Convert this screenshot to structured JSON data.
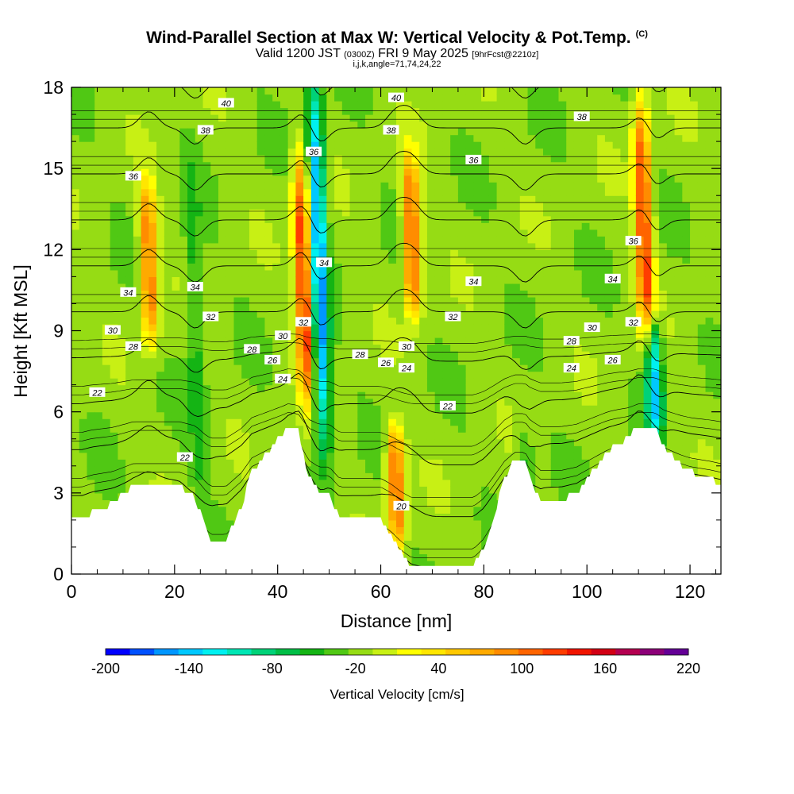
{
  "title": {
    "main": "Wind-Parallel Section at Max W: Vertical Velocity & Pot.Temp.",
    "copyright": "(C)",
    "valid_prefix": "Valid 1200 JST",
    "valid_utc": "(0300Z)",
    "valid_date": "FRI 9 May 2025",
    "forecast_tag": "[9hrFcst@2210z]",
    "indices": "i,j,k,angle=71,74,24,22"
  },
  "chart_data": {
    "type": "heatmap",
    "xlabel": "Distance [nm]",
    "ylabel": "Height [Kft MSL]",
    "xlim": [
      0,
      126
    ],
    "ylim": [
      0,
      18
    ],
    "x_ticks": [
      0,
      20,
      40,
      60,
      80,
      100,
      120
    ],
    "y_ticks": [
      0,
      3,
      6,
      9,
      12,
      15,
      18
    ],
    "colorbar": {
      "label": "Vertical Velocity [cm/s]",
      "min": -200,
      "max": 220,
      "step": 20,
      "tick_labels": [
        -200,
        -140,
        -80,
        -20,
        40,
        100,
        160,
        220
      ],
      "colors": [
        "#0000ff",
        "#0050ff",
        "#0096ff",
        "#00c8ff",
        "#00f0f0",
        "#00e6b4",
        "#00d278",
        "#00be46",
        "#14b414",
        "#50c814",
        "#96dc14",
        "#c8f014",
        "#ffff00",
        "#ffe600",
        "#ffc800",
        "#ffaa00",
        "#ff8c00",
        "#ff6400",
        "#ff3c00",
        "#f01400",
        "#d20014",
        "#b40050",
        "#8c0078",
        "#640096"
      ]
    },
    "terrain_profile_kft": [
      [
        0,
        2
      ],
      [
        2,
        2
      ],
      [
        4,
        2.3
      ],
      [
        8,
        2.6
      ],
      [
        12,
        3.3
      ],
      [
        16,
        3.3
      ],
      [
        21,
        3.3
      ],
      [
        24,
        2.8
      ],
      [
        26,
        1.7
      ],
      [
        27,
        1.3
      ],
      [
        30,
        1.3
      ],
      [
        33,
        2.5
      ],
      [
        35,
        3.8
      ],
      [
        38,
        4.5
      ],
      [
        41,
        5.2
      ],
      [
        42,
        5.5
      ],
      [
        44,
        5.3
      ],
      [
        46,
        3.6
      ],
      [
        48,
        3.0
      ],
      [
        50,
        3.0
      ],
      [
        52,
        2.0
      ],
      [
        58,
        2.0
      ],
      [
        60,
        2.0
      ],
      [
        62,
        1.5
      ],
      [
        64,
        0.8
      ],
      [
        66,
        0.3
      ],
      [
        78,
        0.3
      ],
      [
        80,
        1.0
      ],
      [
        82,
        2.2
      ],
      [
        84,
        3.5
      ],
      [
        86,
        4.3
      ],
      [
        88,
        4.3
      ],
      [
        89,
        3.5
      ],
      [
        91,
        2.7
      ],
      [
        95,
        2.7
      ],
      [
        98,
        3.0
      ],
      [
        100,
        3.5
      ],
      [
        104,
        4.5
      ],
      [
        106,
        4.8
      ],
      [
        108,
        5.0
      ],
      [
        110,
        5.5
      ],
      [
        113,
        5.5
      ],
      [
        115,
        4.7
      ],
      [
        118,
        4.1
      ],
      [
        120,
        3.8
      ],
      [
        124,
        3.5
      ],
      [
        126,
        3.3
      ]
    ],
    "vertical_velocity_features": [
      {
        "x": 15,
        "y_range": [
          9,
          14
        ],
        "peak_cm_s": 140
      },
      {
        "x": 24,
        "y_range": [
          3,
          15
        ],
        "peak_cm_s": -40
      },
      {
        "x": 45,
        "y_range": [
          7,
          15
        ],
        "peak_cm_s": 180
      },
      {
        "x": 48,
        "y_range": [
          5,
          18
        ],
        "peak_cm_s": -160
      },
      {
        "x": 66,
        "y_range": [
          10,
          15
        ],
        "peak_cm_s": 160
      },
      {
        "x": 63,
        "y_range": [
          1.5,
          5
        ],
        "peak_cm_s": 150
      },
      {
        "x": 88,
        "y_range": [
          2.5,
          5
        ],
        "peak_cm_s": -40
      },
      {
        "x": 111,
        "y_range": [
          9,
          17
        ],
        "peak_cm_s": 170
      },
      {
        "x": 113,
        "y_range": [
          5.5,
          9
        ],
        "peak_cm_s": -140
      }
    ],
    "theta_contours": [
      {
        "label": "20",
        "label_x": 64,
        "label_y": 2.5
      },
      {
        "label": "22",
        "label_x": 5,
        "label_y": 6.7
      },
      {
        "label": "22",
        "label_x": 22,
        "label_y": 4.3
      },
      {
        "label": "22",
        "label_x": 73,
        "label_y": 6.2
      },
      {
        "label": "24",
        "label_x": 41,
        "label_y": 7.2
      },
      {
        "label": "24",
        "label_x": 65,
        "label_y": 7.6
      },
      {
        "label": "24",
        "label_x": 97,
        "label_y": 7.6
      },
      {
        "label": "26",
        "label_x": 39,
        "label_y": 7.9
      },
      {
        "label": "26",
        "label_x": 61,
        "label_y": 7.8
      },
      {
        "label": "26",
        "label_x": 105,
        "label_y": 7.9
      },
      {
        "label": "28",
        "label_x": 12,
        "label_y": 8.4
      },
      {
        "label": "28",
        "label_x": 35,
        "label_y": 8.3
      },
      {
        "label": "28",
        "label_x": 56,
        "label_y": 8.1
      },
      {
        "label": "28",
        "label_x": 97,
        "label_y": 8.6
      },
      {
        "label": "30",
        "label_x": 8,
        "label_y": 9.0
      },
      {
        "label": "30",
        "label_x": 41,
        "label_y": 8.8
      },
      {
        "label": "30",
        "label_x": 65,
        "label_y": 8.4
      },
      {
        "label": "30",
        "label_x": 101,
        "label_y": 9.1
      },
      {
        "label": "32",
        "label_x": 27,
        "label_y": 9.5
      },
      {
        "label": "32",
        "label_x": 45,
        "label_y": 9.3
      },
      {
        "label": "32",
        "label_x": 74,
        "label_y": 9.5
      },
      {
        "label": "32",
        "label_x": 109,
        "label_y": 9.3
      },
      {
        "label": "34",
        "label_x": 11,
        "label_y": 10.4
      },
      {
        "label": "34",
        "label_x": 24,
        "label_y": 10.6
      },
      {
        "label": "34",
        "label_x": 49,
        "label_y": 11.5
      },
      {
        "label": "34",
        "label_x": 78,
        "label_y": 10.8
      },
      {
        "label": "34",
        "label_x": 105,
        "label_y": 10.9
      },
      {
        "label": "36",
        "label_x": 12,
        "label_y": 14.7
      },
      {
        "label": "36",
        "label_x": 47,
        "label_y": 15.6
      },
      {
        "label": "36",
        "label_x": 78,
        "label_y": 15.3
      },
      {
        "label": "36",
        "label_x": 109,
        "label_y": 12.3
      },
      {
        "label": "38",
        "label_x": 26,
        "label_y": 16.4
      },
      {
        "label": "38",
        "label_x": 62,
        "label_y": 16.4
      },
      {
        "label": "38",
        "label_x": 99,
        "label_y": 16.9
      },
      {
        "label": "40",
        "label_x": 30,
        "label_y": 17.4
      },
      {
        "label": "40",
        "label_x": 63,
        "label_y": 17.6
      }
    ]
  }
}
